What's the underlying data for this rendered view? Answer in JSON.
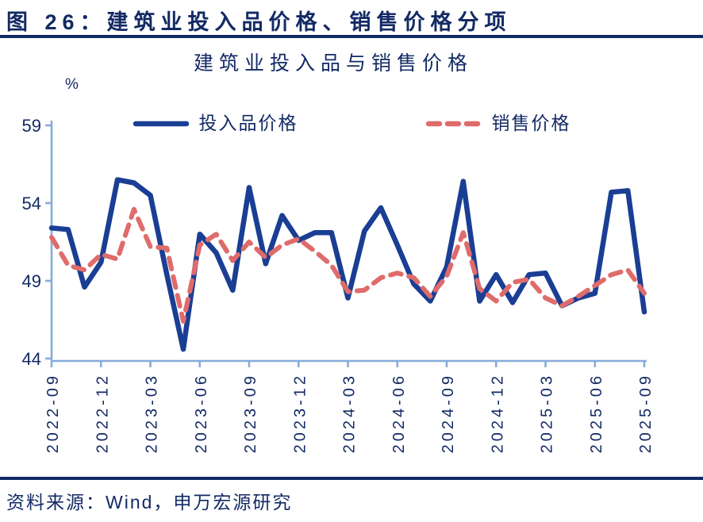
{
  "header": {
    "title": "图 26：建筑业投入品价格、销售价格分项"
  },
  "footer": {
    "source": "资料来源：Wind，申万宏源研究"
  },
  "chart": {
    "title": "建筑业投入品与销售价格",
    "unit_label": "%"
  },
  "colors": {
    "navy_text": "#132A64",
    "input_line_blue": "#1A3E94",
    "sales_line_red": "#DF6B6B",
    "axis_light_blue": "#86ACD9"
  },
  "chart_data": {
    "type": "line",
    "title": "建筑业投入品与销售价格",
    "xlabel": "",
    "ylabel": "%",
    "ylim": [
      44,
      59
    ],
    "yticks": [
      44,
      49,
      54,
      59
    ],
    "x_tick_step": 3,
    "grid": false,
    "legend_position": "top",
    "categories": [
      "2022-09",
      "2022-10",
      "2022-11",
      "2022-12",
      "2023-01",
      "2023-02",
      "2023-03",
      "2023-04",
      "2023-05",
      "2023-06",
      "2023-07",
      "2023-08",
      "2023-09",
      "2023-10",
      "2023-11",
      "2023-12",
      "2024-01",
      "2024-02",
      "2024-03",
      "2024-04",
      "2024-05",
      "2024-06",
      "2024-07",
      "2024-08",
      "2024-09",
      "2024-10",
      "2024-11",
      "2024-12",
      "2025-01",
      "2025-02",
      "2025-03",
      "2025-04",
      "2025-05",
      "2025-06",
      "2025-07",
      "2025-08",
      "2025-09"
    ],
    "series": [
      {
        "id": "input-price",
        "name": "投入品价格",
        "style": "solid",
        "color": "#1A3E94",
        "values": [
          52.4,
          52.3,
          48.6,
          50.2,
          55.5,
          55.3,
          54.5,
          49.4,
          44.6,
          52.0,
          50.8,
          48.4,
          55.0,
          50.1,
          53.2,
          51.6,
          52.1,
          52.1,
          47.9,
          52.2,
          53.7,
          51.3,
          48.8,
          47.7,
          49.9,
          55.4,
          47.7,
          49.4,
          47.6,
          49.4,
          49.5,
          47.4,
          47.9,
          48.2,
          54.7,
          54.8,
          47.0
        ]
      },
      {
        "id": "sales-price",
        "name": "销售价格",
        "style": "dashed",
        "color": "#DF6B6B",
        "values": [
          51.8,
          50.0,
          49.7,
          50.7,
          50.4,
          53.6,
          51.2,
          51.1,
          46.4,
          51.3,
          52.0,
          50.3,
          51.5,
          50.5,
          51.3,
          51.7,
          50.9,
          50.0,
          48.3,
          48.4,
          49.2,
          49.5,
          49.2,
          48.0,
          49.3,
          52.1,
          48.5,
          47.7,
          48.9,
          49.1,
          47.9,
          47.4,
          48.0,
          48.7,
          49.4,
          49.7,
          48.2
        ]
      }
    ]
  }
}
